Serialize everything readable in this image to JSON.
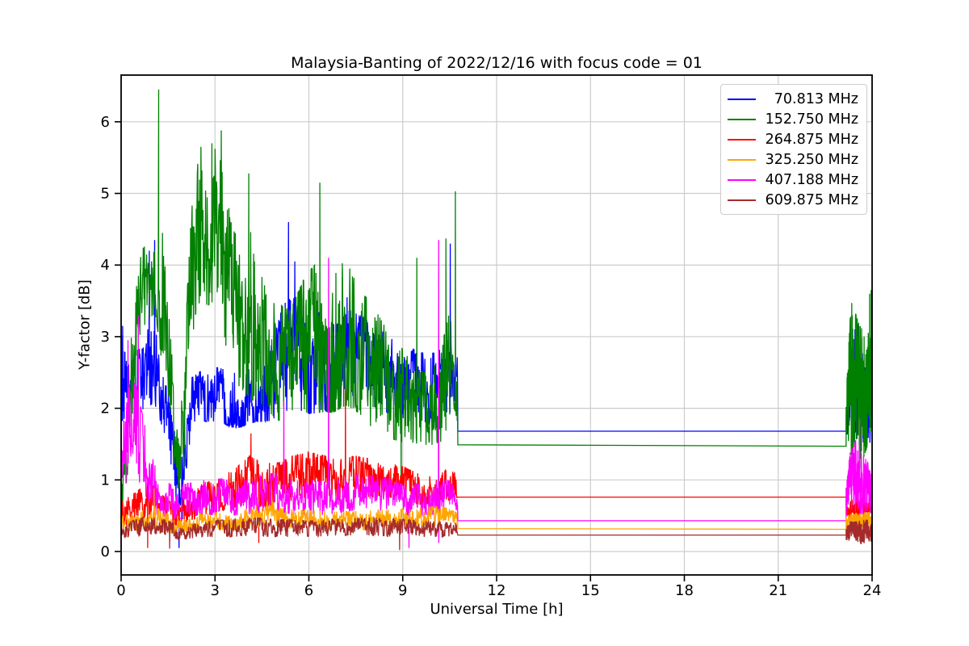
{
  "chart_data": {
    "type": "line",
    "title": "Malaysia-Banting of 2022/12/16 with focus code = 01",
    "xlabel": "Universal Time [h]",
    "ylabel": "Y-factor [dB]",
    "x_ticks": [
      0,
      3,
      6,
      9,
      12,
      15,
      18,
      21,
      24
    ],
    "y_ticks": [
      0,
      1,
      2,
      3,
      4,
      5,
      6
    ],
    "xlim": [
      0,
      24
    ],
    "ylim": [
      -0.327,
      6.652
    ],
    "grid": true,
    "legend_position": "upper right",
    "colors": {
      "background": "#ffffff",
      "grid": "#cccccc",
      "spine": "#000000",
      "text": "#000000"
    },
    "quiet_period_hours": [
      10.76,
      23.17
    ],
    "series": [
      {
        "label": "70.813 MHz",
        "color": "#0000ff",
        "draw_order": 0,
        "flat": {
          "t_start": 10.76,
          "t_end": 23.17,
          "v_start": 1.68,
          "v_end": 1.68
        },
        "noise_am": [
          [
            0,
            1.8,
            3.1
          ],
          [
            0.2,
            1.8,
            2.6
          ],
          [
            0.5,
            1.9,
            2.8
          ],
          [
            0.8,
            2.0,
            3.2
          ],
          [
            1.1,
            2.0,
            3.3
          ],
          [
            1.4,
            1.6,
            2.4
          ],
          [
            1.7,
            0.8,
            1.9
          ],
          [
            1.9,
            0.1,
            1.2
          ],
          [
            2.1,
            1.2,
            2.2
          ],
          [
            2.3,
            1.8,
            2.5
          ],
          [
            3.0,
            1.8,
            2.6
          ],
          [
            3.7,
            1.7,
            2.5
          ],
          [
            4.3,
            1.8,
            2.6
          ],
          [
            4.8,
            1.8,
            2.9
          ],
          [
            5.2,
            1.9,
            3.5
          ],
          [
            5.5,
            2.0,
            3.6
          ],
          [
            5.9,
            1.9,
            3.2
          ],
          [
            6.4,
            1.9,
            3.4
          ],
          [
            6.9,
            2.0,
            3.2
          ],
          [
            7.3,
            2.0,
            3.4
          ],
          [
            7.7,
            2.1,
            3.3
          ],
          [
            8.1,
            2.0,
            3.2
          ],
          [
            8.6,
            1.9,
            3.0
          ],
          [
            9.1,
            1.8,
            2.9
          ],
          [
            9.6,
            1.8,
            2.8
          ],
          [
            10.1,
            1.7,
            2.8
          ],
          [
            10.5,
            1.9,
            3.0
          ],
          [
            10.76,
            2.2,
            2.7
          ]
        ],
        "spikes_am": [
          [
            0.05,
            3.15
          ],
          [
            0.9,
            4.2
          ],
          [
            1.07,
            4.35
          ],
          [
            1.85,
            0.05
          ],
          [
            5.35,
            4.6
          ],
          [
            5.55,
            4.05
          ],
          [
            7.22,
            3.55
          ],
          [
            10.52,
            4.3
          ]
        ],
        "noise_pm": [
          [
            23.17,
            1.6,
            1.9
          ],
          [
            23.3,
            1.5,
            2.6
          ],
          [
            23.5,
            1.55,
            3.0
          ],
          [
            23.65,
            1.5,
            2.9
          ],
          [
            23.8,
            1.5,
            2.5
          ],
          [
            24,
            1.5,
            2.3
          ]
        ],
        "spikes_pm": [
          [
            23.45,
            3.1
          ],
          [
            23.55,
            3.17
          ]
        ]
      },
      {
        "label": "152.750 MHz",
        "color": "#008000",
        "draw_order": 1,
        "flat": {
          "t_start": 10.76,
          "t_end": 23.17,
          "v_start": 1.49,
          "v_end": 1.47
        },
        "noise_am": [
          [
            0,
            0.4,
            0.8
          ],
          [
            0.25,
            1.2,
            2.6
          ],
          [
            0.5,
            2.6,
            4.0
          ],
          [
            0.8,
            3.2,
            4.4
          ],
          [
            1.1,
            3.3,
            4.5
          ],
          [
            1.3,
            2.6,
            4.6
          ],
          [
            1.55,
            1.6,
            3.2
          ],
          [
            1.8,
            0.9,
            1.7
          ],
          [
            2.0,
            1.1,
            2.4
          ],
          [
            2.2,
            2.6,
            4.6
          ],
          [
            2.45,
            3.4,
            5.6
          ],
          [
            2.8,
            3.4,
            5.6
          ],
          [
            3.1,
            3.5,
            5.7
          ],
          [
            3.35,
            2.8,
            5.0
          ],
          [
            3.7,
            2.3,
            4.4
          ],
          [
            4.1,
            2.1,
            4.6
          ],
          [
            4.5,
            2.0,
            3.9
          ],
          [
            5.0,
            1.8,
            3.5
          ],
          [
            5.4,
            1.8,
            3.4
          ],
          [
            5.9,
            1.9,
            3.9
          ],
          [
            6.3,
            1.9,
            4.1
          ],
          [
            6.8,
            1.9,
            4.0
          ],
          [
            7.2,
            2.0,
            4.1
          ],
          [
            7.6,
            1.9,
            3.7
          ],
          [
            8.0,
            1.7,
            3.5
          ],
          [
            8.4,
            1.6,
            3.2
          ],
          [
            8.9,
            1.5,
            3.0
          ],
          [
            9.3,
            1.5,
            2.6
          ],
          [
            9.8,
            1.45,
            2.5
          ],
          [
            10.2,
            1.5,
            2.8
          ],
          [
            10.5,
            1.6,
            3.4
          ],
          [
            10.76,
            1.8,
            2.3
          ]
        ],
        "spikes_am": [
          [
            1.2,
            6.45
          ],
          [
            1.83,
            0.88
          ],
          [
            2.55,
            5.65
          ],
          [
            2.9,
            5.7
          ],
          [
            3.2,
            5.88
          ],
          [
            4.08,
            5.28
          ],
          [
            6.35,
            5.15
          ],
          [
            8.95,
            0.85
          ],
          [
            9.45,
            4.1
          ],
          [
            10.38,
            4.37
          ],
          [
            10.68,
            5.03
          ]
        ],
        "noise_pm": [
          [
            23.17,
            1.5,
            2.2
          ],
          [
            23.3,
            1.2,
            3.3
          ],
          [
            23.45,
            1.0,
            3.4
          ],
          [
            23.6,
            1.1,
            3.2
          ],
          [
            23.75,
            1.3,
            3.1
          ],
          [
            23.9,
            1.5,
            3.4
          ],
          [
            24,
            1.8,
            3.3
          ]
        ],
        "spikes_pm": [
          [
            23.35,
            3.47
          ],
          [
            23.92,
            3.6
          ],
          [
            23.97,
            3.65
          ]
        ]
      },
      {
        "label": "264.875 MHz",
        "color": "#ff0000",
        "draw_order": 2,
        "flat": {
          "t_start": 10.76,
          "t_end": 23.17,
          "v_start": 0.76,
          "v_end": 0.76
        },
        "noise_am": [
          [
            0,
            0.35,
            0.7
          ],
          [
            0.5,
            0.4,
            0.85
          ],
          [
            0.9,
            0.5,
            1.0
          ],
          [
            1.3,
            0.4,
            0.8
          ],
          [
            1.7,
            0.35,
            0.65
          ],
          [
            2.1,
            0.4,
            0.75
          ],
          [
            2.6,
            0.5,
            0.95
          ],
          [
            3.1,
            0.55,
            1.05
          ],
          [
            3.6,
            0.6,
            1.15
          ],
          [
            4.1,
            0.65,
            1.35
          ],
          [
            4.5,
            0.6,
            1.25
          ],
          [
            5.0,
            0.65,
            1.25
          ],
          [
            5.5,
            0.7,
            1.35
          ],
          [
            6.0,
            0.75,
            1.4
          ],
          [
            6.5,
            0.75,
            1.35
          ],
          [
            7.0,
            0.7,
            1.3
          ],
          [
            7.5,
            0.75,
            1.35
          ],
          [
            8.0,
            0.75,
            1.3
          ],
          [
            8.5,
            0.75,
            1.25
          ],
          [
            9.0,
            0.7,
            1.2
          ],
          [
            9.5,
            0.65,
            1.1
          ],
          [
            10.0,
            0.65,
            1.1
          ],
          [
            10.4,
            0.7,
            1.15
          ],
          [
            10.76,
            0.75,
            1.1
          ]
        ],
        "spikes_am": [
          [
            0.85,
            0.05
          ],
          [
            4.15,
            1.65
          ],
          [
            4.4,
            0.12
          ],
          [
            7.17,
            2.3
          ]
        ],
        "noise_pm": [
          [
            23.17,
            0.45,
            0.65
          ],
          [
            23.4,
            0.4,
            0.75
          ],
          [
            23.7,
            0.45,
            0.75
          ],
          [
            24,
            0.45,
            0.7
          ]
        ],
        "spikes_pm": []
      },
      {
        "label": "325.250 MHz",
        "color": "#ffa500",
        "draw_order": 4,
        "flat": {
          "t_start": 10.76,
          "t_end": 23.17,
          "v_start": 0.32,
          "v_end": 0.31
        },
        "noise_am": [
          [
            0,
            0.25,
            0.5
          ],
          [
            0.5,
            0.28,
            0.55
          ],
          [
            0.9,
            0.32,
            0.68
          ],
          [
            1.2,
            0.3,
            0.6
          ],
          [
            1.6,
            0.25,
            0.5
          ],
          [
            2.2,
            0.28,
            0.52
          ],
          [
            3.0,
            0.3,
            0.55
          ],
          [
            3.8,
            0.3,
            0.58
          ],
          [
            4.4,
            0.33,
            0.65
          ],
          [
            4.8,
            0.38,
            0.72
          ],
          [
            5.2,
            0.32,
            0.6
          ],
          [
            6.0,
            0.3,
            0.58
          ],
          [
            7.0,
            0.3,
            0.56
          ],
          [
            8.0,
            0.3,
            0.58
          ],
          [
            9.0,
            0.32,
            0.6
          ],
          [
            9.6,
            0.35,
            0.62
          ],
          [
            10.2,
            0.35,
            0.65
          ],
          [
            10.76,
            0.32,
            0.55
          ]
        ],
        "spikes_am": [
          [
            1.05,
            0.88
          ]
        ],
        "noise_pm": [
          [
            23.17,
            0.3,
            0.5
          ],
          [
            23.5,
            0.3,
            0.55
          ],
          [
            24,
            0.3,
            0.55
          ]
        ],
        "spikes_pm": []
      },
      {
        "label": "407.188 MHz",
        "color": "#ff00ff",
        "draw_order": 3,
        "flat": {
          "t_start": 10.76,
          "t_end": 23.17,
          "v_start": 0.43,
          "v_end": 0.43
        },
        "noise_am": [
          [
            0,
            1.0,
            2.3
          ],
          [
            0.2,
            0.9,
            2.3
          ],
          [
            0.45,
            0.9,
            2.4
          ],
          [
            0.7,
            0.8,
            1.9
          ],
          [
            0.95,
            0.6,
            1.4
          ],
          [
            1.2,
            0.5,
            1.05
          ],
          [
            1.6,
            0.45,
            0.95
          ],
          [
            2.0,
            0.45,
            0.95
          ],
          [
            2.5,
            0.5,
            1.0
          ],
          [
            3.0,
            0.5,
            1.05
          ],
          [
            3.5,
            0.5,
            1.0
          ],
          [
            4.0,
            0.5,
            1.0
          ],
          [
            4.5,
            0.55,
            1.1
          ],
          [
            5.0,
            0.55,
            1.1
          ],
          [
            5.5,
            0.5,
            1.0
          ],
          [
            6.0,
            0.5,
            1.0
          ],
          [
            6.6,
            0.5,
            1.0
          ],
          [
            7.2,
            0.55,
            1.05
          ],
          [
            7.8,
            0.6,
            1.1
          ],
          [
            8.4,
            0.55,
            1.05
          ],
          [
            9.0,
            0.5,
            0.95
          ],
          [
            9.5,
            0.5,
            0.95
          ],
          [
            10.0,
            0.5,
            1.0
          ],
          [
            10.5,
            0.5,
            1.0
          ],
          [
            10.76,
            0.5,
            0.85
          ]
        ],
        "spikes_am": [
          [
            0.22,
            2.95
          ],
          [
            0.55,
            3.3
          ],
          [
            5.2,
            2.1
          ],
          [
            6.63,
            4.1
          ],
          [
            9.2,
            0.05
          ],
          [
            10.15,
            4.35
          ],
          [
            10.152,
            0.12
          ]
        ],
        "noise_pm": [
          [
            23.17,
            0.45,
            0.9
          ],
          [
            23.3,
            0.5,
            1.4
          ],
          [
            23.5,
            0.55,
            1.6
          ],
          [
            23.65,
            0.5,
            1.5
          ],
          [
            23.8,
            0.5,
            1.3
          ],
          [
            24,
            0.5,
            1.2
          ]
        ],
        "spikes_pm": [
          [
            23.6,
            1.86
          ]
        ]
      },
      {
        "label": "609.875 MHz",
        "color": "#a52a2a",
        "draw_order": 5,
        "flat": {
          "t_start": 10.76,
          "t_end": 23.17,
          "v_start": 0.23,
          "v_end": 0.23
        },
        "noise_am": [
          [
            0,
            0.18,
            0.4
          ],
          [
            0.5,
            0.2,
            0.45
          ],
          [
            0.9,
            0.22,
            0.52
          ],
          [
            1.1,
            0.25,
            0.55
          ],
          [
            1.4,
            0.2,
            0.45
          ],
          [
            1.8,
            0.17,
            0.38
          ],
          [
            2.4,
            0.18,
            0.4
          ],
          [
            3.0,
            0.2,
            0.44
          ],
          [
            3.6,
            0.2,
            0.45
          ],
          [
            4.2,
            0.22,
            0.48
          ],
          [
            5.0,
            0.2,
            0.45
          ],
          [
            6.0,
            0.2,
            0.44
          ],
          [
            7.0,
            0.22,
            0.46
          ],
          [
            8.0,
            0.22,
            0.48
          ],
          [
            8.8,
            0.2,
            0.46
          ],
          [
            9.5,
            0.2,
            0.44
          ],
          [
            10.2,
            0.2,
            0.42
          ],
          [
            10.76,
            0.2,
            0.4
          ]
        ],
        "spikes_am": [
          [
            1.55,
            0.04
          ],
          [
            8.9,
            0.02
          ]
        ],
        "noise_pm": [
          [
            23.17,
            0.1,
            0.42
          ],
          [
            23.4,
            0.08,
            0.42
          ],
          [
            23.7,
            0.1,
            0.45
          ],
          [
            24,
            0.15,
            0.45
          ]
        ],
        "spikes_pm": []
      }
    ]
  }
}
